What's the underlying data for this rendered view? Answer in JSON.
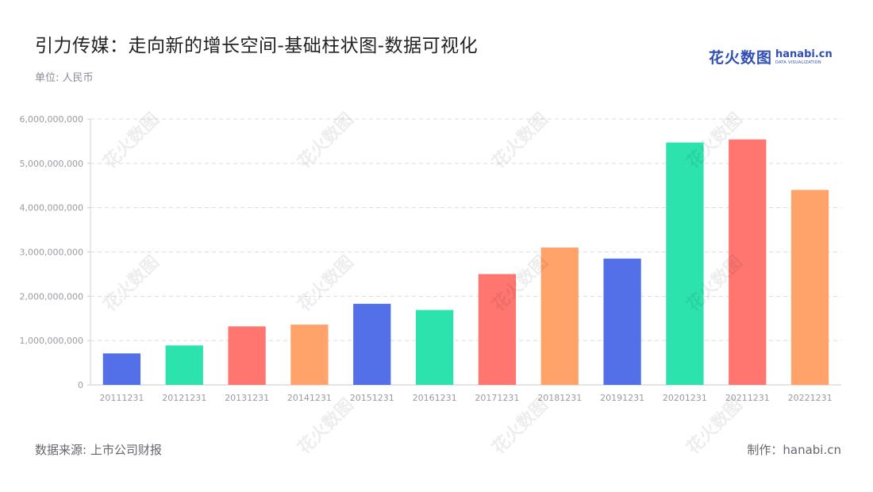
{
  "header": {
    "title": "引力传媒：走向新的增长空间-基础柱状图-数据可视化",
    "unit": "单位: 人民币"
  },
  "logo": {
    "cn": "花火数图",
    "en": "hanabi.cn",
    "en_sub": "DATA VISUALIZATION"
  },
  "footer": {
    "source": "数据来源: 上市公司财报",
    "credit": "制作：hanabi.cn"
  },
  "watermark": {
    "text": "花火数图"
  },
  "chart_data": {
    "type": "bar",
    "categories": [
      "20111231",
      "20121231",
      "20131231",
      "20141231",
      "20151231",
      "20161231",
      "20171231",
      "20181231",
      "20191231",
      "20201231",
      "20211231",
      "20221231"
    ],
    "values": [
      710000000,
      890000000,
      1320000000,
      1360000000,
      1830000000,
      1690000000,
      2500000000,
      3100000000,
      2850000000,
      5470000000,
      5540000000,
      4400000000
    ],
    "colors": [
      "#5470e8",
      "#2de3ad",
      "#ff7670",
      "#ffa36b",
      "#5470e8",
      "#2de3ad",
      "#ff7670",
      "#ffa36b",
      "#5470e8",
      "#2de3ad",
      "#ff7670",
      "#ffa36b"
    ],
    "ylim": [
      0,
      6000000000
    ],
    "yticks": [
      0,
      1000000000,
      2000000000,
      3000000000,
      4000000000,
      5000000000,
      6000000000
    ],
    "ytick_labels": [
      "0",
      "1,000,000,000",
      "2,000,000,000",
      "3,000,000,000",
      "4,000,000,000",
      "5,000,000,000",
      "6,000,000,000"
    ],
    "grid": true,
    "legend": "none"
  }
}
